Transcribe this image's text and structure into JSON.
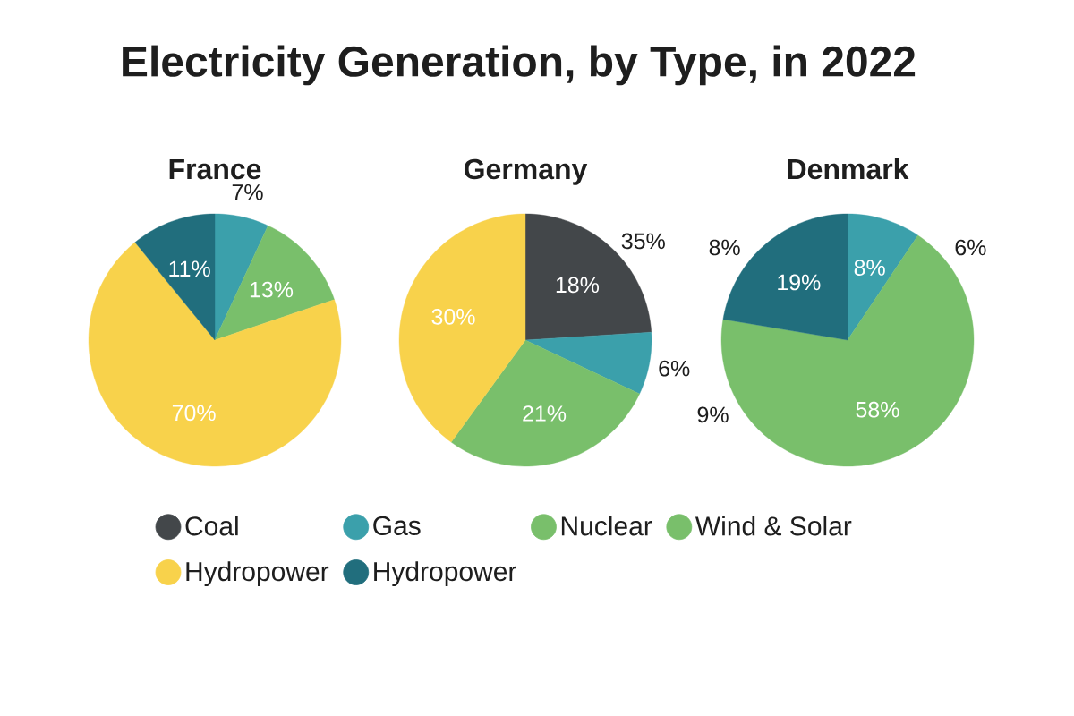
{
  "chart_data": {
    "type": "pie",
    "title": "Electricity Generation, by Type, in 2022",
    "categories": [
      "Coal",
      "Gas",
      "Nuclear",
      "Wind & Solar",
      "Hydropower",
      "Hydropower"
    ],
    "colors": [
      "#43474a",
      "#3ba0ab",
      "#79bf6b",
      "#79bf6b",
      "#f8d24b",
      "#216e7d"
    ],
    "series": [
      {
        "name": "France",
        "values": [
          null,
          7,
          13,
          null,
          70,
          11
        ],
        "value_labels": [
          null,
          "7%",
          "13%",
          null,
          "70%",
          "11%"
        ]
      },
      {
        "name": "Germany",
        "values": [
          18,
          6,
          null,
          21,
          30,
          null
        ],
        "value_labels": [
          "18%",
          "6%",
          null,
          "21%",
          "30%",
          null
        ]
      },
      {
        "name": "Denmark",
        "values": [
          null,
          8,
          null,
          58,
          null,
          19
        ],
        "value_labels": [
          null,
          "8%",
          null,
          "58%",
          null,
          "19%"
        ]
      }
    ],
    "annotations": [
      "35%",
      "8%",
      "6%",
      "9%"
    ],
    "legend": "bottom"
  }
}
